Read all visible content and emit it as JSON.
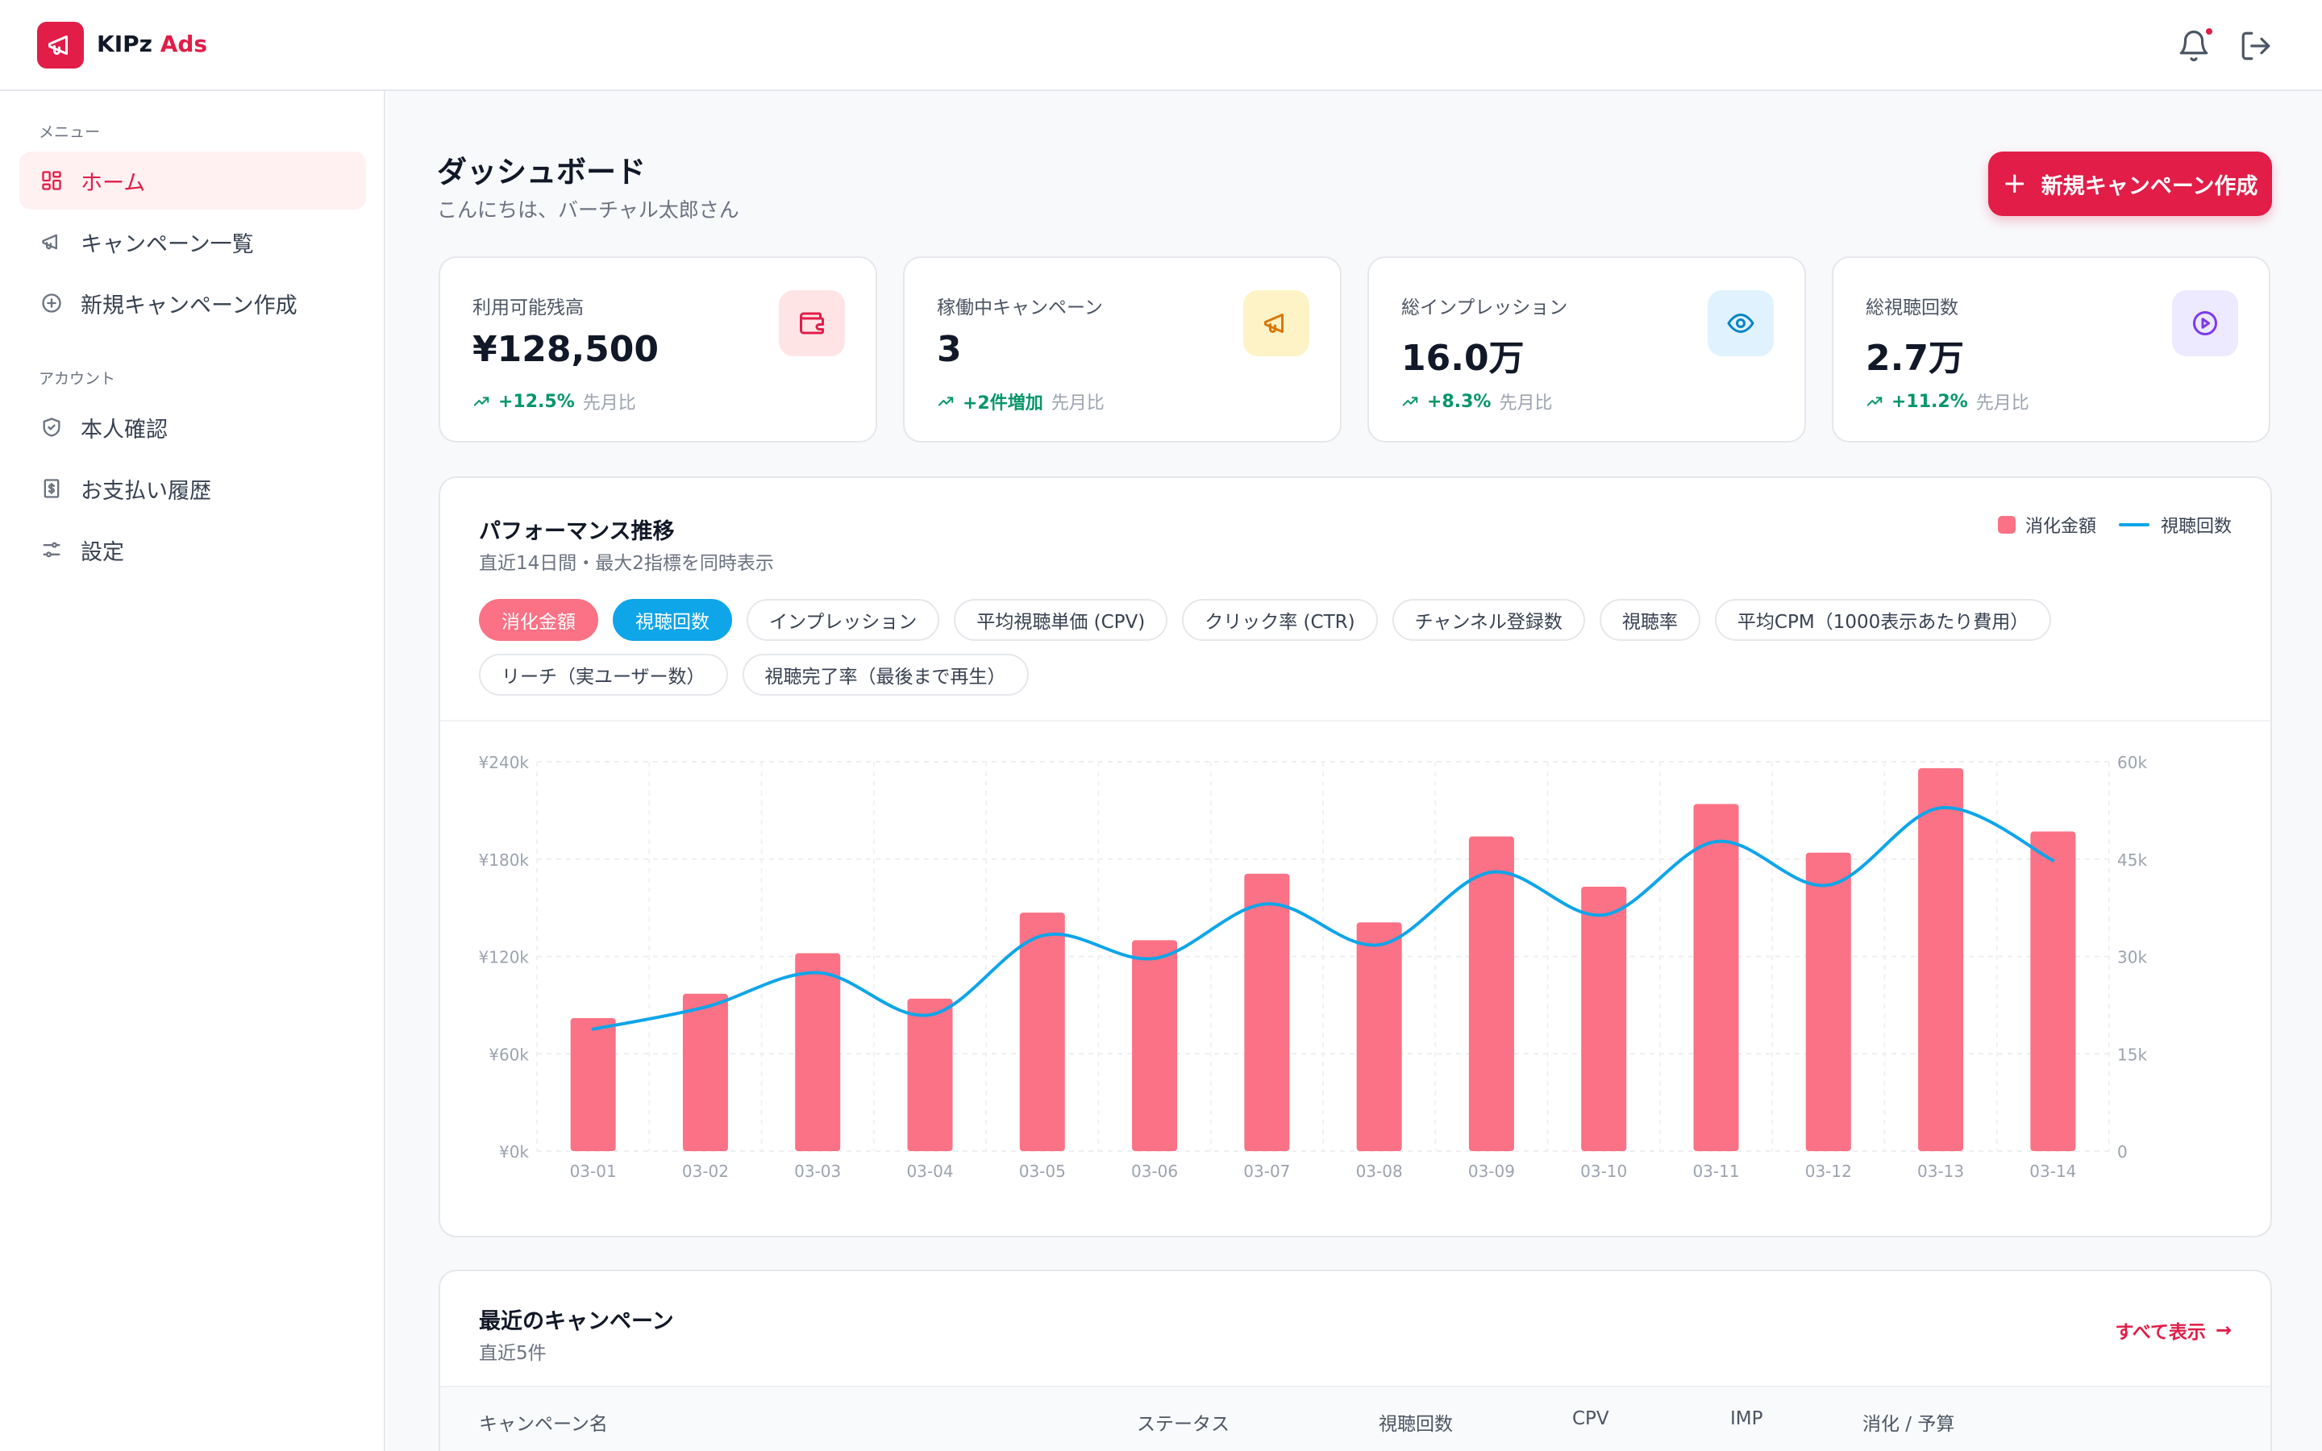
{
  "brand": {
    "name_part1": "KIPz",
    "name_part2": "Ads",
    "color": "#e11d48"
  },
  "header": {
    "icons": [
      "bell-icon",
      "logout-icon"
    ],
    "has_notification": true
  },
  "sidebar": {
    "menu_label": "メニュー",
    "menu_items": [
      {
        "label": "ホーム",
        "icon": "grid-icon",
        "active": true
      },
      {
        "label": "キャンペーン一覧",
        "icon": "megaphone-icon",
        "active": false
      },
      {
        "label": "新規キャンペーン作成",
        "icon": "plus-circle-icon",
        "active": false
      }
    ],
    "account_label": "アカウント",
    "account_items": [
      {
        "label": "本人確認",
        "icon": "shield-icon"
      },
      {
        "label": "お支払い履歴",
        "icon": "receipt-icon"
      },
      {
        "label": "設定",
        "icon": "settings-icon"
      }
    ]
  },
  "page": {
    "title": "ダッシュボード",
    "subtitle": "こんにちは、バーチャル太郎さん",
    "new_campaign_button": "新規キャンペーン作成"
  },
  "stats": [
    {
      "label": "利用可能残高",
      "value": "¥128,500",
      "change": "+12.5%",
      "compare": "先月比",
      "icon": "wallet-icon",
      "color": "#e11d48",
      "bg": "#ffe4e6"
    },
    {
      "label": "稼働中キャンペーン",
      "value": "3",
      "change": "+2件増加",
      "compare": "先月比",
      "icon": "megaphone-icon",
      "color": "#d97706",
      "bg": "#fef3c7"
    },
    {
      "label": "総インプレッション",
      "value": "16.0万",
      "change": "+8.3%",
      "compare": "先月比",
      "icon": "eye-icon",
      "color": "#0284c7",
      "bg": "#e0f2fe"
    },
    {
      "label": "総視聴回数",
      "value": "2.7万",
      "change": "+11.2%",
      "compare": "先月比",
      "icon": "play-circle-icon",
      "color": "#7c3aed",
      "bg": "#ede9fe"
    }
  ],
  "performance": {
    "title": "パフォーマンス推移",
    "subtitle": "直近14日間・最大2指標を同時表示",
    "legend": [
      "消化金額",
      "視聴回数"
    ],
    "metrics": [
      {
        "label": "消化金額",
        "state": "red"
      },
      {
        "label": "視聴回数",
        "state": "blue"
      },
      {
        "label": "インプレッション",
        "state": ""
      },
      {
        "label": "平均視聴単価 (CPV)",
        "state": ""
      },
      {
        "label": "クリック率 (CTR)",
        "state": ""
      },
      {
        "label": "チャンネル登録数",
        "state": ""
      },
      {
        "label": "視聴率",
        "state": ""
      },
      {
        "label": "平均CPM（1000表示あたり費用）",
        "state": ""
      },
      {
        "label": "リーチ（実ユーザー数）",
        "state": ""
      },
      {
        "label": "視聴完了率（最後まで再生）",
        "state": ""
      }
    ]
  },
  "chart_data": {
    "type": "bar",
    "categories": [
      "03-01",
      "03-02",
      "03-03",
      "03-04",
      "03-05",
      "03-06",
      "03-07",
      "03-08",
      "03-09",
      "03-10",
      "03-11",
      "03-12",
      "03-13",
      "03-14"
    ],
    "series": [
      {
        "name": "消化金額",
        "type": "bar",
        "axis": "left",
        "color": "#fb7185",
        "values": [
          82000,
          97000,
          122000,
          94000,
          147000,
          130000,
          171000,
          141000,
          194000,
          163000,
          214000,
          184000,
          236000,
          197000
        ]
      },
      {
        "name": "視聴回数",
        "type": "line",
        "axis": "right",
        "color": "#0ea5e9",
        "values": [
          18800,
          22200,
          27500,
          21000,
          33200,
          29700,
          38100,
          31800,
          43000,
          36400,
          47700,
          41000,
          52900,
          44800
        ]
      }
    ],
    "y_left": {
      "ticks": [
        "¥0k",
        "¥60k",
        "¥120k",
        "¥180k",
        "¥240k"
      ],
      "lim": [
        0,
        240000
      ]
    },
    "y_right": {
      "ticks": [
        "0",
        "15k",
        "30k",
        "45k",
        "60k"
      ],
      "lim": [
        0,
        60000
      ]
    },
    "grid": true
  },
  "recent": {
    "title": "最近のキャンペーン",
    "subtitle": "直近5件",
    "see_all": "すべて表示",
    "columns": [
      "キャンペーン名",
      "ステータス",
      "視聴回数",
      "CPV",
      "IMP",
      "消化 / 予算"
    ]
  }
}
